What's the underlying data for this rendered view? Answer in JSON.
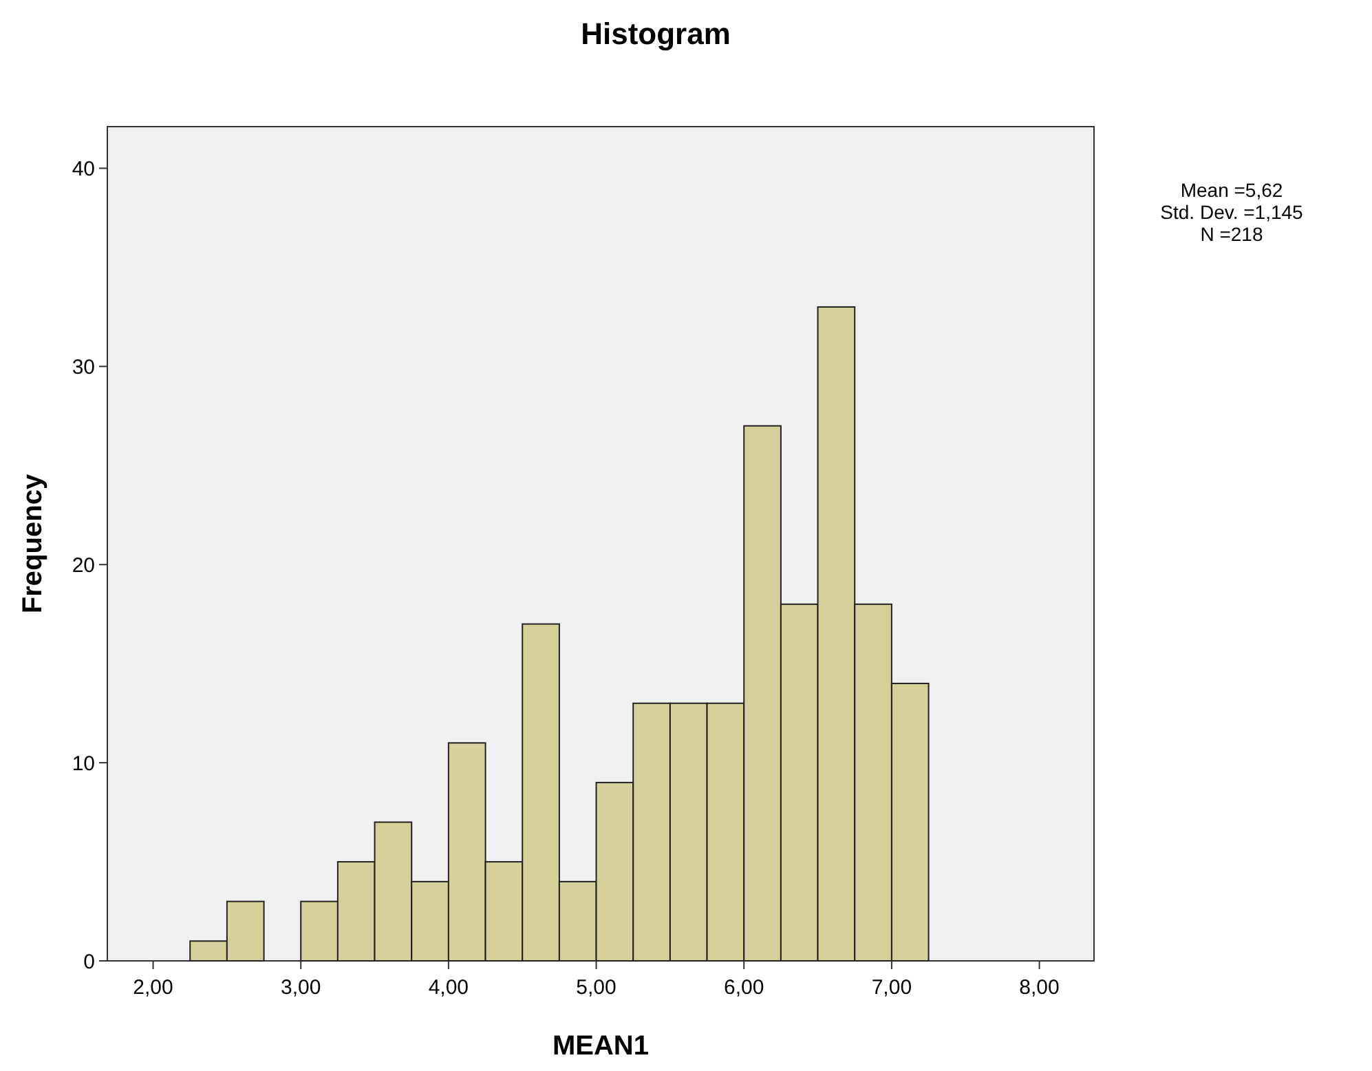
{
  "chart_data": {
    "type": "histogram",
    "title": "Histogram",
    "xlabel": "MEAN1",
    "ylabel": "Frequency",
    "bins": [
      2.25,
      2.5,
      2.75,
      3.0,
      3.25,
      3.5,
      3.75,
      4.0,
      4.25,
      4.5,
      4.75,
      5.0,
      5.25,
      5.5,
      5.75,
      6.0,
      6.25,
      6.5,
      6.75,
      7.0,
      7.25
    ],
    "values": [
      1,
      3,
      0,
      3,
      5,
      7,
      4,
      11,
      5,
      17,
      4,
      9,
      13,
      13,
      13,
      27,
      18,
      33,
      18,
      14
    ],
    "color": "#d6d09b",
    "xlim": [
      1.69,
      8.37
    ],
    "ylim": [
      0,
      42.1
    ],
    "xticks": [
      {
        "value": 2,
        "label": "2,00"
      },
      {
        "value": 3,
        "label": "3,00"
      },
      {
        "value": 4,
        "label": "4,00"
      },
      {
        "value": 5,
        "label": "5,00"
      },
      {
        "value": 6,
        "label": "6,00"
      },
      {
        "value": 7,
        "label": "7,00"
      },
      {
        "value": 8,
        "label": "8,00"
      }
    ],
    "yticks": [
      0,
      10,
      20,
      30,
      40
    ],
    "annotations": [
      "Mean =5,62",
      "Std. Dev. =1,145",
      "N =218"
    ],
    "grid": false
  }
}
